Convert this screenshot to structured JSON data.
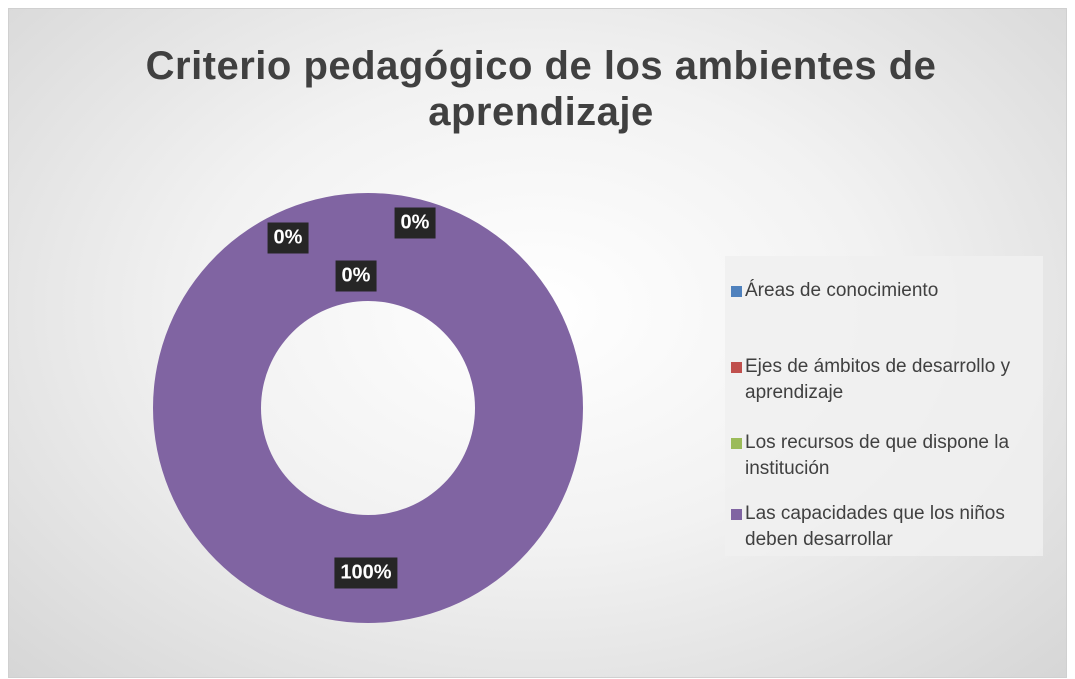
{
  "chart_data": {
    "type": "donut",
    "title": "Criterio pedagógico de los ambientes de aprendizaje",
    "categories": [
      "Áreas de conocimiento",
      "Ejes de ámbitos de desarrollo y aprendizaje",
      "Los recursos de que dispone la institución",
      "Las capacidades que los niños deben desarrollar"
    ],
    "values": [
      0,
      0,
      0,
      100
    ],
    "value_labels": [
      "0%",
      "0%",
      "0%",
      "100%"
    ],
    "colors": [
      "#4f81bd",
      "#c0504d",
      "#9bbb59",
      "#8064a2"
    ],
    "legend": "right"
  }
}
